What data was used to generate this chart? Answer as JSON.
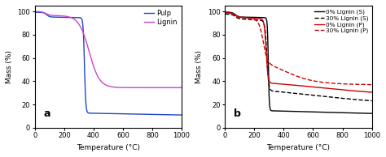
{
  "panel_a": {
    "label": "a",
    "pulp_color": "#2244cc",
    "lignin_color": "#cc44cc",
    "xlabel": "Temperature (°C)",
    "ylabel": "Mass (%)",
    "xlim": [
      0,
      1000
    ],
    "ylim": [
      0,
      105
    ],
    "xticks": [
      0,
      200,
      400,
      600,
      800,
      1000
    ],
    "yticks": [
      0,
      20,
      40,
      60,
      80,
      100
    ]
  },
  "panel_b": {
    "label": "b",
    "xlabel": "Temperature (°C)",
    "ylabel": "Mass (%)",
    "xlim": [
      0,
      1000
    ],
    "ylim": [
      0,
      105
    ],
    "xticks": [
      0,
      200,
      400,
      600,
      800,
      1000
    ],
    "yticks": [
      0,
      20,
      40,
      60,
      80,
      100
    ]
  }
}
